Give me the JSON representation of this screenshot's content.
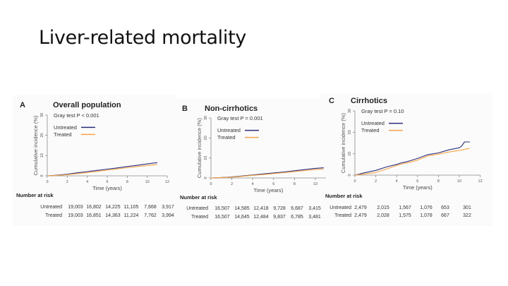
{
  "slide": {
    "title": "Liver-related mortality"
  },
  "colors": {
    "untreated": "#2b2d7c",
    "treated": "#f5a445",
    "axis": "#8a8a8a",
    "text": "#222222"
  },
  "chart_data": [
    {
      "type": "line",
      "panel_label": "A",
      "title": "Overall population",
      "annotation": "Gray test P < 0.001",
      "xlabel": "Time (years)",
      "ylabel": "Cumulative incidence (%)",
      "xlim": [
        0,
        12
      ],
      "ylim": [
        0,
        30
      ],
      "xticks": [
        0,
        2,
        4,
        6,
        8,
        10,
        12
      ],
      "yticks": [
        0,
        10,
        20,
        30
      ],
      "grid": false,
      "legend_position": "top-left",
      "series": [
        {
          "name": "Untreated",
          "x": [
            0,
            1,
            2,
            3,
            4,
            5,
            6,
            7,
            8,
            9,
            10,
            11
          ],
          "y": [
            0,
            0.3,
            0.8,
            1.5,
            2.1,
            2.7,
            3.3,
            3.9,
            4.6,
            5.2,
            5.9,
            6.5
          ]
        },
        {
          "name": "Treated",
          "x": [
            0,
            1,
            2,
            3,
            4,
            5,
            6,
            7,
            8,
            9,
            10,
            11
          ],
          "y": [
            0,
            0.2,
            0.6,
            1.1,
            1.6,
            2.2,
            2.8,
            3.4,
            4.0,
            4.6,
            5.1,
            5.6
          ]
        }
      ],
      "risk_table": {
        "title": "Number at risk",
        "rows": [
          {
            "label": "Untreated",
            "values": [
              "19,003",
              "16,802",
              "14,225",
              "11,105",
              "7,668",
              "3,917"
            ]
          },
          {
            "label": "Treated",
            "values": [
              "19,003",
              "16,851",
              "14,363",
              "11,224",
              "7,762",
              "3,994"
            ]
          }
        ]
      }
    },
    {
      "type": "line",
      "panel_label": "B",
      "title": "Non-cirrhotics",
      "annotation": "Gray test P = 0.001",
      "xlabel": "Time (years)",
      "ylabel": "Cumulative incidence (%)",
      "xlim": [
        0,
        11
      ],
      "ylim": [
        0,
        30
      ],
      "xticks": [
        0,
        2,
        4,
        6,
        8,
        10
      ],
      "yticks": [
        0,
        10,
        20,
        30
      ],
      "grid": false,
      "legend_position": "top-left",
      "series": [
        {
          "name": "Untreated",
          "x": [
            0,
            1,
            2,
            3,
            4,
            5,
            6,
            7,
            8,
            9,
            10,
            10.8
          ],
          "y": [
            0,
            0.2,
            0.5,
            1.0,
            1.5,
            2.0,
            2.5,
            3.0,
            3.6,
            4.2,
            4.8,
            5.1
          ]
        },
        {
          "name": "Treated",
          "x": [
            0,
            1,
            2,
            3,
            4,
            5,
            6,
            7,
            8,
            9,
            10,
            10.8
          ],
          "y": [
            0,
            0.2,
            0.4,
            0.8,
            1.3,
            1.7,
            2.2,
            2.7,
            3.2,
            3.7,
            4.2,
            4.5
          ]
        }
      ],
      "risk_table": {
        "title": "Number at risk",
        "rows": [
          {
            "label": "Untreated",
            "values": [
              "16,507",
              "14,585",
              "12,418",
              "9,728",
              "6,687",
              "3,415"
            ]
          },
          {
            "label": "Treated",
            "values": [
              "16,507",
              "14,645",
              "12,484",
              "9,837",
              "6,785",
              "3,481"
            ]
          }
        ]
      }
    },
    {
      "type": "line",
      "panel_label": "C",
      "title": "Cirrhotics",
      "annotation": "Gray test P = 0.10",
      "xlabel": "Time (years)",
      "ylabel": "Cumulative incidence (%)",
      "xlim": [
        0,
        12
      ],
      "ylim": [
        0,
        30
      ],
      "xticks": [
        0,
        2,
        4,
        6,
        8,
        10,
        12
      ],
      "yticks": [
        0,
        10,
        20,
        30
      ],
      "grid": false,
      "legend_position": "top-left",
      "series": [
        {
          "name": "Untreated",
          "x": [
            0,
            0.5,
            1,
            2,
            3,
            4,
            4.5,
            5,
            6,
            7,
            8,
            9,
            10,
            10.2,
            10.5,
            11
          ],
          "y": [
            0,
            0.6,
            1.2,
            2.2,
            3.8,
            5.0,
            5.8,
            6.3,
            7.8,
            9.6,
            10.4,
            11.8,
            12.8,
            13.5,
            15.5,
            15.5
          ]
        },
        {
          "name": "Treated",
          "x": [
            0,
            1,
            2,
            3,
            4,
            4.5,
            5,
            6,
            7,
            8,
            9,
            10,
            11
          ],
          "y": [
            0,
            0.6,
            1.2,
            2.8,
            4.5,
            5.2,
            5.7,
            7.0,
            9.0,
            9.8,
            10.8,
            11.6,
            12.5
          ]
        }
      ],
      "risk_table": {
        "title": "Number at risk",
        "rows": [
          {
            "label": "Untreated",
            "values": [
              "2,479",
              "2,015",
              "1,567",
              "1,076",
              "653",
              "301"
            ]
          },
          {
            "label": "Treated",
            "values": [
              "2,479",
              "2,028",
              "1,575",
              "1,078",
              "667",
              "322"
            ]
          }
        ]
      }
    }
  ]
}
